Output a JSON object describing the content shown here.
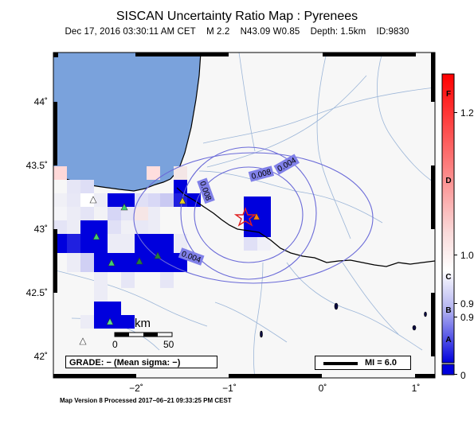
{
  "header": {
    "title": "SISCAN Uncertainty Ratio Map : Pyrenees",
    "datetime": "Dec 17, 2016 03:30:11 AM CET",
    "magnitude": "M 2.2",
    "location": "N43.09 W0.85",
    "depth": "Depth: 1.5km",
    "event_id": "ID:9830"
  },
  "map": {
    "lat_ticks": [
      "44˚",
      "43.5˚",
      "43˚",
      "42.5˚",
      "42˚"
    ],
    "lon_ticks": [
      "−2˚",
      "−1˚",
      "0˚",
      "1˚"
    ],
    "contour_labels": [
      "0.004",
      "0.008",
      "0.008",
      "0.004"
    ],
    "scale_unit": "km",
    "scale_start": "0",
    "scale_end": "50",
    "epicenter_icon": "star-icon",
    "station_icon": "triangle-icon"
  },
  "legend": {
    "grade_text": "GRADE: − (Mean sigma: −)",
    "mi_text": "MI = 6.0"
  },
  "colorbar": {
    "tick_labels": [
      "1.2",
      "1.0",
      "0.9",
      "0.9",
      "0"
    ],
    "grade_letters": [
      "F",
      "D",
      "C",
      "B",
      "A"
    ]
  },
  "footer": {
    "text": "Map Version 8 Processed 2017−06−21 09:33:25 PM CEST"
  },
  "colors": {
    "sea": "#7aa2dc",
    "land": "#f7f7f7",
    "high_ratio": "#0000dd",
    "contour": "#6b6bd8",
    "epicenter": "#e02020"
  }
}
